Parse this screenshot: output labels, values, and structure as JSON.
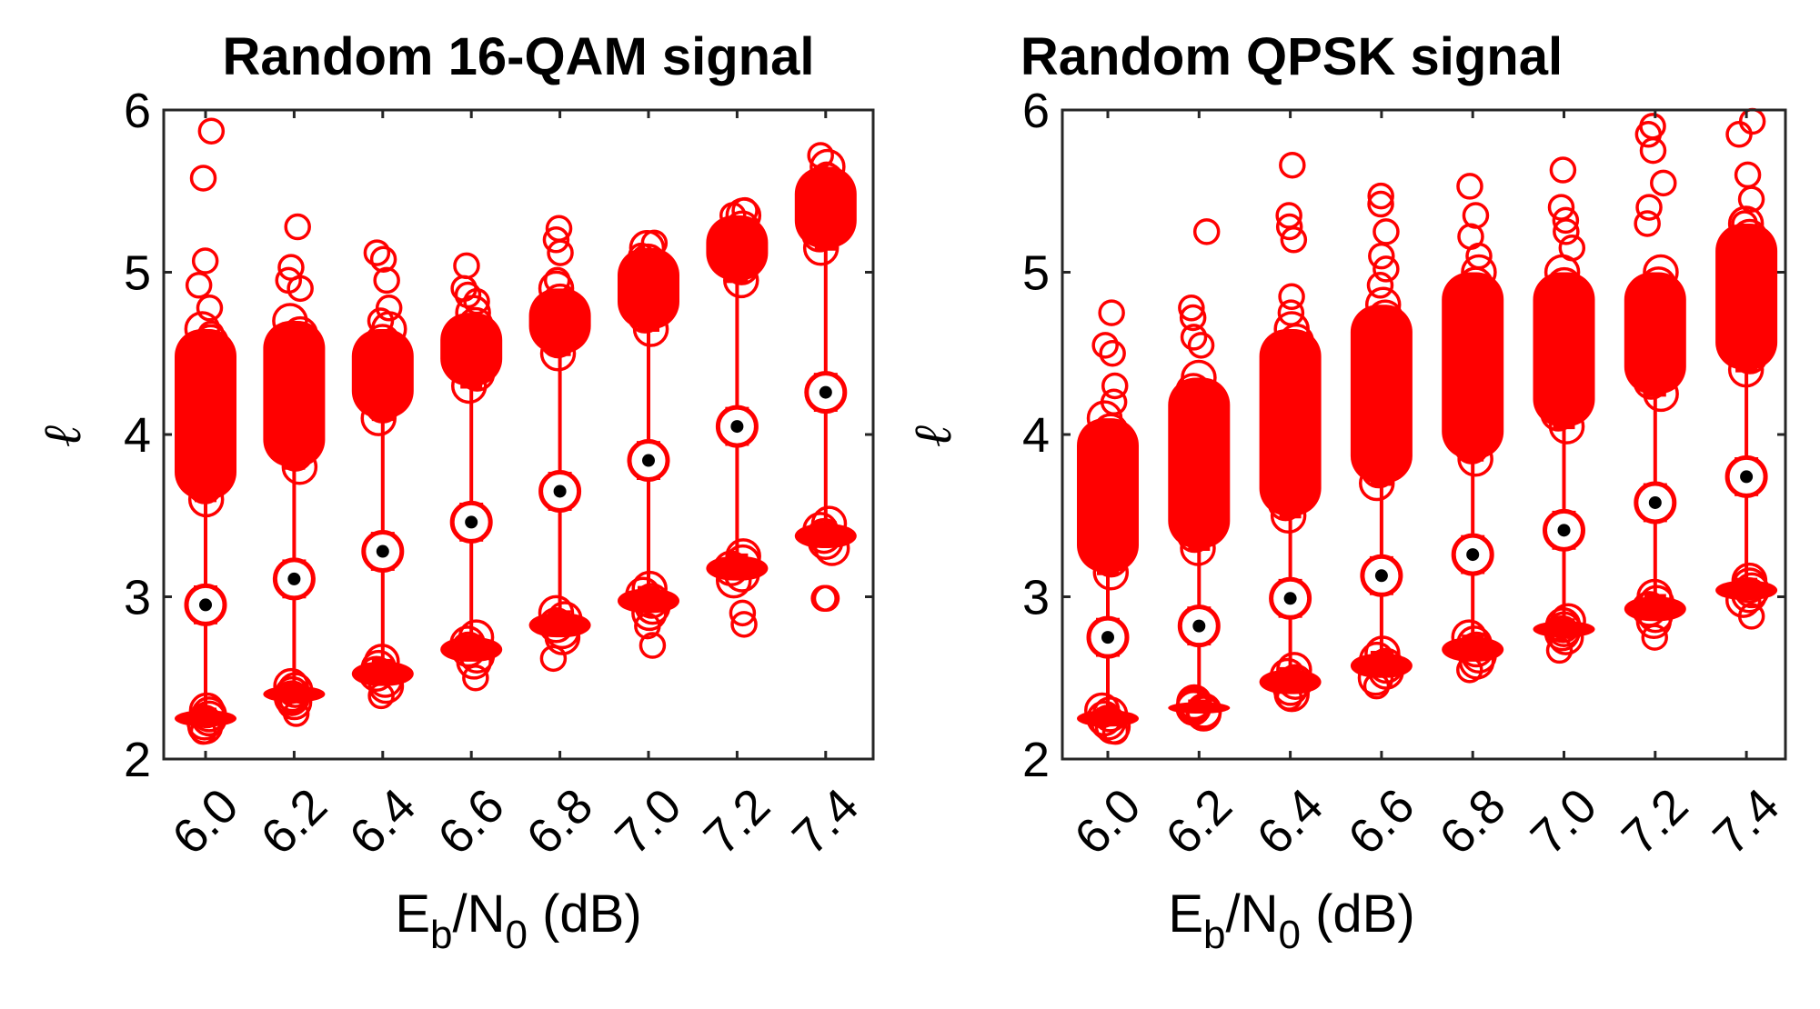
{
  "chart_data": [
    {
      "type": "scatter",
      "title": "Random 16-QAM signal",
      "xlabel_main": "E",
      "xlabel_sub1": "b",
      "xlabel_mid": "/N",
      "xlabel_sub2": "0",
      "xlabel_tail": " (dB)",
      "ylabel": "ℓ",
      "categories": [
        "6.0",
        "6.2",
        "6.4",
        "6.6",
        "6.8",
        "7.0",
        "7.2",
        "7.4"
      ],
      "ylim": [
        2,
        6
      ],
      "yticks": [
        "2",
        "3",
        "4",
        "5",
        "6"
      ],
      "color": "#ff0000",
      "series": [
        {
          "upper_cluster": [
            [
              3.6,
              4.65
            ],
            [
              3.8,
              4.7
            ],
            [
              4.1,
              4.65
            ],
            [
              4.3,
              4.75
            ],
            [
              4.5,
              4.9
            ],
            [
              4.65,
              5.15
            ],
            [
              4.95,
              5.35
            ],
            [
              5.15,
              5.65
            ]
          ],
          "lower_cluster": [
            [
              2.2,
              2.3
            ],
            [
              2.35,
              2.45
            ],
            [
              2.45,
              2.6
            ],
            [
              2.6,
              2.75
            ],
            [
              2.75,
              2.9
            ],
            [
              2.9,
              3.05
            ],
            [
              3.1,
              3.25
            ],
            [
              3.3,
              3.45
            ]
          ],
          "median": [
            2.95,
            3.11,
            3.28,
            3.46,
            3.65,
            3.84,
            4.05,
            4.26
          ],
          "outliers": [
            [
              5.87,
              5.58,
              5.07,
              4.92,
              4.78,
              4.62,
              2.17
            ],
            [
              5.28,
              5.03,
              4.95,
              4.9,
              2.28,
              2.36
            ],
            [
              5.12,
              5.08,
              4.95,
              4.78,
              4.7,
              2.39
            ],
            [
              5.04,
              4.9,
              4.86,
              4.82,
              2.5
            ],
            [
              5.27,
              5.2,
              5.12,
              4.95,
              2.62
            ],
            [
              5.18,
              5.1,
              2.7,
              2.82
            ],
            [
              5.38,
              5.35,
              2.83,
              2.9
            ],
            [
              5.72,
              5.6,
              5.5,
              2.99,
              2.99
            ]
          ]
        }
      ]
    },
    {
      "type": "scatter",
      "title": "Random QPSK signal",
      "xlabel_main": "E",
      "xlabel_sub1": "b",
      "xlabel_mid": "/N",
      "xlabel_sub2": "0",
      "xlabel_tail": " (dB)",
      "ylabel": "ℓ",
      "categories": [
        "6.0",
        "6.2",
        "6.4",
        "6.6",
        "6.8",
        "7.0",
        "7.2",
        "7.4"
      ],
      "ylim": [
        2,
        6
      ],
      "yticks": [
        "2",
        "3",
        "4",
        "5",
        "6"
      ],
      "color": "#ff0000",
      "series": [
        {
          "upper_cluster": [
            [
              3.15,
              4.1
            ],
            [
              3.3,
              4.35
            ],
            [
              3.5,
              4.65
            ],
            [
              3.7,
              4.8
            ],
            [
              3.85,
              5.0
            ],
            [
              4.05,
              5.0
            ],
            [
              4.25,
              5.0
            ],
            [
              4.4,
              5.3
            ]
          ],
          "lower_cluster": [
            [
              2.2,
              2.3
            ],
            [
              2.28,
              2.35
            ],
            [
              2.4,
              2.55
            ],
            [
              2.5,
              2.65
            ],
            [
              2.6,
              2.75
            ],
            [
              2.75,
              2.85
            ],
            [
              2.85,
              3.0
            ],
            [
              2.98,
              3.1
            ]
          ],
          "median": [
            2.75,
            2.82,
            2.99,
            3.13,
            3.26,
            3.41,
            3.58,
            3.74
          ],
          "outliers": [
            [
              4.75,
              4.55,
              4.5,
              4.3,
              4.2,
              2.17
            ],
            [
              5.25,
              4.78,
              4.72,
              4.6,
              4.55
            ],
            [
              5.66,
              5.35,
              5.28,
              5.2,
              4.85,
              4.75,
              2.38
            ],
            [
              5.47,
              5.42,
              5.25,
              5.1,
              5.02,
              4.92,
              2.45
            ],
            [
              5.53,
              5.35,
              5.22,
              5.1,
              2.55
            ],
            [
              5.63,
              5.4,
              5.32,
              5.25,
              5.15,
              2.67
            ],
            [
              5.9,
              5.85,
              5.75,
              5.55,
              5.4,
              5.3,
              2.75
            ],
            [
              5.93,
              5.85,
              5.6,
              5.45,
              5.3,
              2.88
            ]
          ]
        }
      ]
    }
  ]
}
